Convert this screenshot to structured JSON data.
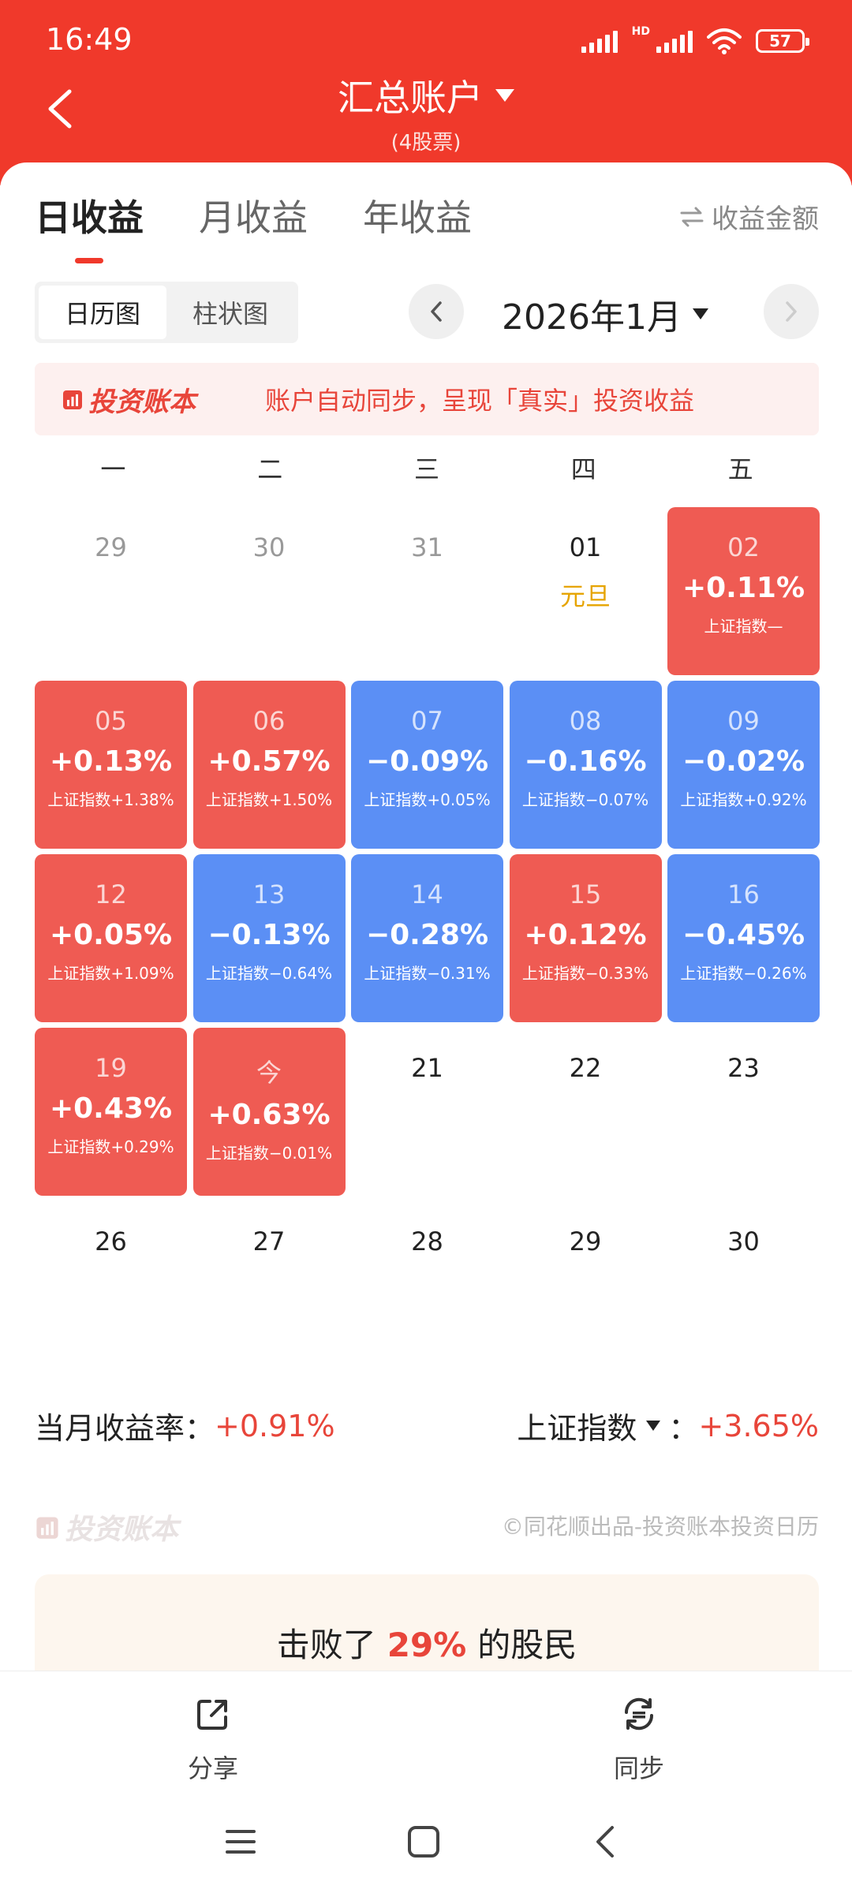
{
  "status": {
    "time": "16:49",
    "battery": "57",
    "network": "HD"
  },
  "header": {
    "title": "汇总账户",
    "subtitle": "(4股票)"
  },
  "tabs": [
    {
      "label": "日收益",
      "active": true
    },
    {
      "label": "月收益",
      "active": false
    },
    {
      "label": "年收益",
      "active": false
    }
  ],
  "amount_toggle": "收益金额",
  "view_toggle": {
    "calendar": "日历图",
    "bar": "柱状图"
  },
  "month": "2026年1月",
  "banner": {
    "brand": "投资账本",
    "text": "账户自动同步，呈现「真实」投资收益"
  },
  "weekdays": [
    "一",
    "二",
    "三",
    "四",
    "五"
  ],
  "calendar": [
    [
      {
        "day": "29",
        "type": "muted"
      },
      {
        "day": "30",
        "type": "muted"
      },
      {
        "day": "31",
        "type": "muted"
      },
      {
        "day": "01",
        "type": "plain",
        "holiday": "元旦"
      },
      {
        "day": "02",
        "type": "up",
        "pct": "+0.11%",
        "idx": "上证指数—"
      }
    ],
    [
      {
        "day": "05",
        "type": "up",
        "pct": "+0.13%",
        "idx": "上证指数+1.38%"
      },
      {
        "day": "06",
        "type": "up",
        "pct": "+0.57%",
        "idx": "上证指数+1.50%"
      },
      {
        "day": "07",
        "type": "down",
        "pct": "−0.09%",
        "idx": "上证指数+0.05%"
      },
      {
        "day": "08",
        "type": "down",
        "pct": "−0.16%",
        "idx": "上证指数−0.07%"
      },
      {
        "day": "09",
        "type": "down",
        "pct": "−0.02%",
        "idx": "上证指数+0.92%"
      }
    ],
    [
      {
        "day": "12",
        "type": "up",
        "pct": "+0.05%",
        "idx": "上证指数+1.09%"
      },
      {
        "day": "13",
        "type": "down",
        "pct": "−0.13%",
        "idx": "上证指数−0.64%"
      },
      {
        "day": "14",
        "type": "down",
        "pct": "−0.28%",
        "idx": "上证指数−0.31%"
      },
      {
        "day": "15",
        "type": "up",
        "pct": "+0.12%",
        "idx": "上证指数−0.33%"
      },
      {
        "day": "16",
        "type": "down",
        "pct": "−0.45%",
        "idx": "上证指数−0.26%"
      }
    ],
    [
      {
        "day": "19",
        "type": "up",
        "pct": "+0.43%",
        "idx": "上证指数+0.29%"
      },
      {
        "day": "今",
        "type": "up",
        "pct": "+0.63%",
        "idx": "上证指数−0.01%"
      },
      {
        "day": "21",
        "type": "plain"
      },
      {
        "day": "22",
        "type": "plain"
      },
      {
        "day": "23",
        "type": "plain"
      }
    ],
    [
      {
        "day": "26",
        "type": "plain"
      },
      {
        "day": "27",
        "type": "plain"
      },
      {
        "day": "28",
        "type": "plain"
      },
      {
        "day": "29",
        "type": "plain"
      },
      {
        "day": "30",
        "type": "plain"
      }
    ]
  ],
  "summary": {
    "monthly_label": "当月收益率：",
    "monthly_value": "+0.91%",
    "index_label": "上证指数",
    "index_sep": "：",
    "index_value": "+3.65%"
  },
  "footer": {
    "brand": "投资账本",
    "credit": "©同花顺出品-投资账本投资日历"
  },
  "beat": {
    "prefix": "击败了",
    "value": "29%",
    "suffix": "的股民"
  },
  "toolbar": {
    "share": "分享",
    "sync": "同步"
  },
  "colors": {
    "brand_red": "#f0392b",
    "up": "#ef5b53",
    "down": "#5b8ff5",
    "holiday": "#e6a400"
  }
}
